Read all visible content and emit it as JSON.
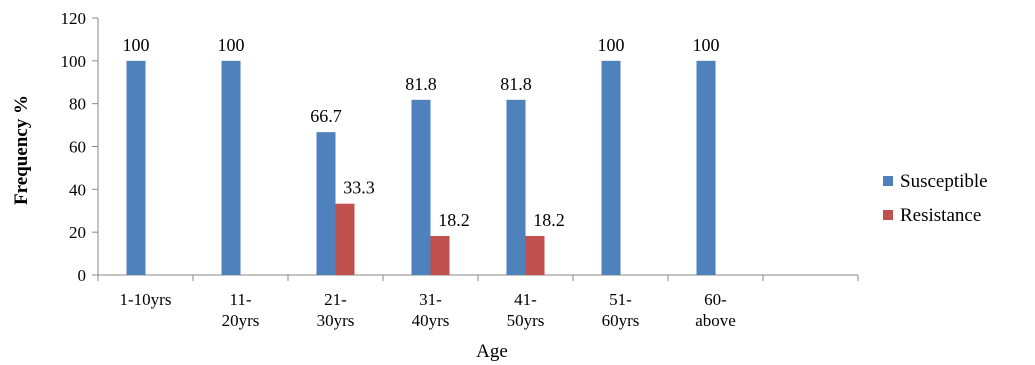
{
  "chart_data": {
    "type": "bar",
    "title": "",
    "xlabel": "Age",
    "ylabel": "Frequency %",
    "ylim": [
      0,
      120
    ],
    "yticks": [
      0,
      20,
      40,
      60,
      80,
      100,
      120
    ],
    "categories": [
      [
        "1-10yrs"
      ],
      [
        "11-",
        "20yrs"
      ],
      [
        "21-",
        "30yrs"
      ],
      [
        "31-",
        "40yrs"
      ],
      [
        "41-",
        "50yrs"
      ],
      [
        "51-",
        "60yrs"
      ],
      [
        "60-",
        "above"
      ]
    ],
    "series": [
      {
        "name": "Susceptible",
        "color": "#4f81bd",
        "values": [
          100,
          100,
          66.7,
          81.8,
          81.8,
          100,
          100
        ],
        "labels": [
          "100",
          "100",
          "66.7",
          "81.8",
          "81.8",
          "100",
          "100"
        ]
      },
      {
        "name": "Resistance",
        "color": "#c0504d",
        "values": [
          null,
          null,
          33.3,
          18.2,
          18.2,
          null,
          null
        ],
        "labels": [
          "",
          "",
          "33.3",
          "18.2",
          "18.2",
          "",
          ""
        ]
      }
    ],
    "legend_position": "right",
    "grid": false
  }
}
